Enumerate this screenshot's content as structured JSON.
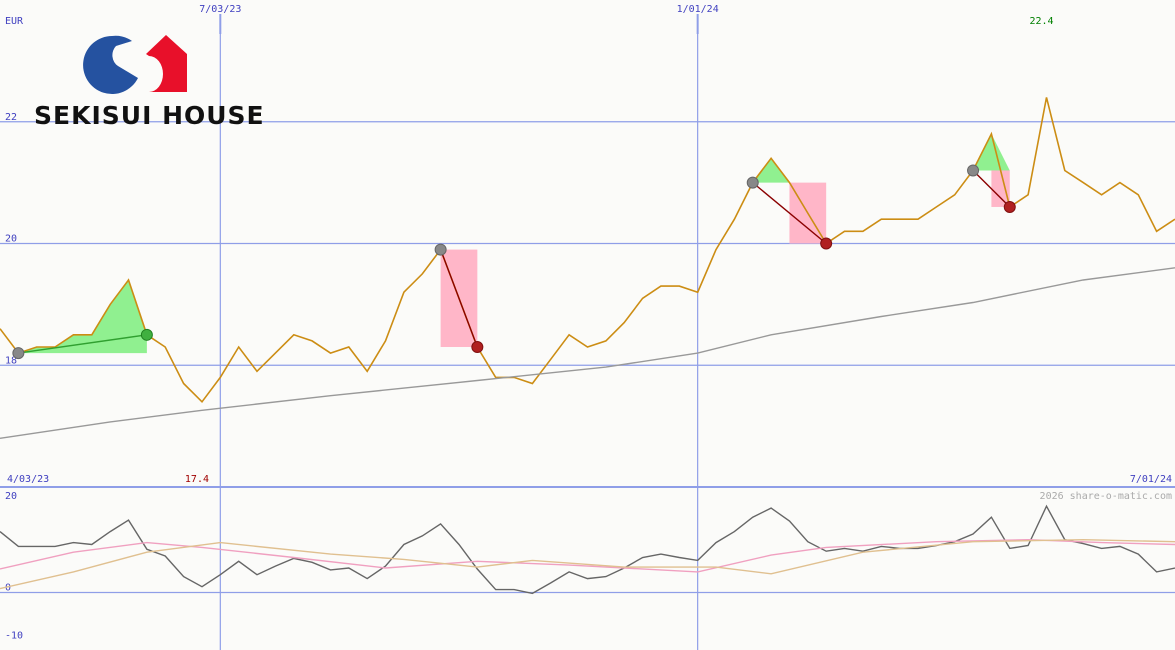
{
  "logo": {
    "text": "SEKISUI HOUSE"
  },
  "chart_data": [
    {
      "type": "line",
      "unit": "EUR",
      "xlim": [
        1,
        65
      ],
      "ylim": [
        16,
        24
      ],
      "yticks": [
        18,
        20,
        22
      ],
      "grid": true,
      "xticks": [
        {
          "value": 13,
          "label": "7/03/23"
        },
        {
          "value": 39,
          "label": "1/01/24"
        }
      ],
      "start_date": "4/03/23",
      "end_date": "7/01/24",
      "max_label": 22.4,
      "max_color": "#008000",
      "min_label": 17.4,
      "min_color": "#a00000",
      "gain_color": "#90f090",
      "loss_color": "#ffb6c8",
      "series": [
        {
          "color": "#cc8d14",
          "x": [
            1,
            2,
            3,
            4,
            5,
            6,
            7,
            8,
            9,
            10,
            11,
            12,
            13,
            14,
            15,
            16,
            17,
            18,
            19,
            20,
            21,
            22,
            23,
            24,
            25,
            26,
            27,
            28,
            29,
            30,
            31,
            32,
            33,
            34,
            35,
            36,
            37,
            38,
            39,
            40,
            41,
            42,
            43,
            44,
            45,
            46,
            47,
            48,
            49,
            50,
            51,
            52,
            53,
            54,
            55,
            56,
            57,
            58,
            59,
            60,
            61,
            62,
            63,
            64,
            65
          ],
          "values": [
            18.6,
            18.2,
            18.3,
            18.3,
            18.5,
            18.5,
            19.0,
            19.4,
            18.5,
            18.3,
            17.7,
            17.4,
            17.8,
            18.3,
            17.9,
            18.2,
            18.5,
            18.4,
            18.2,
            18.3,
            17.9,
            18.4,
            19.2,
            19.5,
            19.9,
            19.1,
            18.3,
            17.8,
            17.8,
            17.7,
            18.1,
            18.5,
            18.3,
            18.4,
            18.7,
            19.1,
            19.3,
            19.3,
            19.2,
            19.9,
            20.4,
            21.0,
            21.4,
            21.0,
            20.5,
            20.0,
            20.2,
            20.2,
            20.4,
            20.4,
            20.4,
            20.6,
            20.8,
            21.2,
            21.8,
            20.6,
            20.8,
            22.4,
            21.2,
            21.0,
            20.8,
            21.0,
            20.8,
            20.2,
            20.4
          ]
        },
        {
          "color": "#999999",
          "x": [
            1,
            7,
            12,
            19,
            27,
            34,
            39,
            43,
            49,
            54,
            60,
            65
          ],
          "values": [
            16.8,
            17.07,
            17.26,
            17.5,
            17.75,
            17.97,
            18.2,
            18.5,
            18.8,
            19.03,
            19.4,
            19.6
          ]
        }
      ],
      "signals": [
        {
          "from": 2,
          "to": 9
        },
        {
          "from": 25,
          "to": 27
        },
        {
          "from": 42,
          "to": 46
        },
        {
          "from": 54,
          "to": 56
        }
      ]
    },
    {
      "type": "line",
      "xlim": [
        1,
        65
      ],
      "ylim": [
        -12,
        22
      ],
      "yticks": [
        20,
        0,
        -10
      ],
      "zero_line": true,
      "watermark": "2026 share-o-matic.com",
      "series": [
        {
          "color": "#666666",
          "x": [
            1,
            2,
            3,
            4,
            5,
            6,
            7,
            8,
            9,
            10,
            11,
            12,
            13,
            14,
            15,
            16,
            17,
            18,
            19,
            20,
            21,
            22,
            23,
            24,
            25,
            26,
            27,
            28,
            29,
            30,
            31,
            32,
            33,
            34,
            35,
            36,
            37,
            38,
            39,
            40,
            41,
            42,
            43,
            44,
            45,
            46,
            47,
            48,
            49,
            50,
            51,
            52,
            53,
            54,
            55,
            56,
            57,
            58,
            59,
            60,
            61,
            62,
            63,
            64,
            65
          ],
          "values": [
            12.7,
            9.6,
            9.6,
            9.6,
            10.4,
            10,
            12.7,
            15.1,
            9,
            7.6,
            3.3,
            1.2,
            3.7,
            6.5,
            3.7,
            5.5,
            7.1,
            6.3,
            4.7,
            5.1,
            2.9,
            5.5,
            10,
            11.8,
            14.3,
            10,
            4.9,
            0.6,
            0.6,
            -0.2,
            2,
            4.3,
            2.9,
            3.3,
            5.1,
            7.3,
            8,
            7.3,
            6.7,
            10.4,
            12.7,
            15.7,
            17.6,
            14.9,
            10.6,
            8.6,
            9.2,
            8.6,
            9.6,
            9.2,
            9.2,
            9.8,
            10.6,
            12.2,
            15.7,
            9.2,
            9.8,
            18,
            11,
            10.2,
            9.2,
            9.6,
            8,
            4.3,
            5.1
          ]
        },
        {
          "color": "#f0a0c0",
          "x": [
            1,
            5,
            9,
            12,
            17,
            22,
            27,
            32,
            39,
            43,
            46,
            52,
            57,
            61,
            65
          ],
          "values": [
            4.9,
            8.4,
            10.4,
            9.4,
            7.3,
            5.1,
            6.5,
            5.7,
            4.3,
            7.8,
            9.4,
            10.6,
            11,
            10.4,
            10
          ]
        },
        {
          "color": "#e0c090",
          "x": [
            1,
            5,
            9,
            13,
            19,
            23,
            27,
            30,
            35,
            40,
            43,
            48,
            54,
            60,
            65
          ],
          "values": [
            0.8,
            4.3,
            8.4,
            10.4,
            8,
            6.9,
            5.3,
            6.7,
            5.3,
            5.3,
            3.9,
            8.4,
            10.6,
            11,
            10.6
          ]
        }
      ]
    }
  ]
}
